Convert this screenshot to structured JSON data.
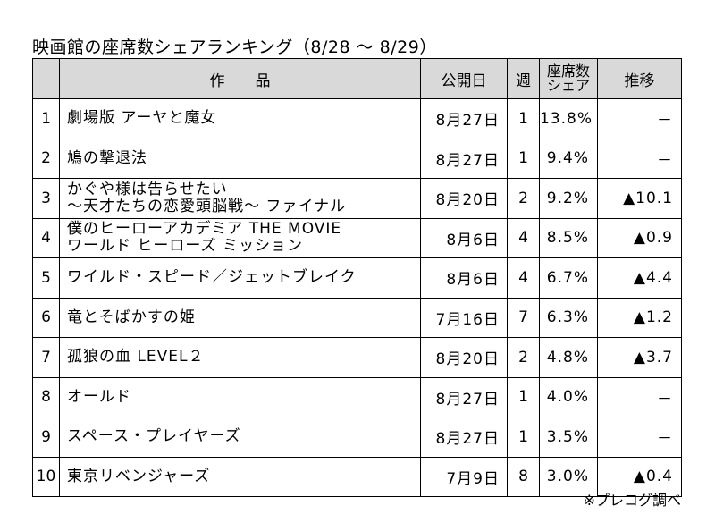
{
  "title": "映画館の座席数シェアランキング（8/28 ～ 8/29）",
  "headers": {
    "rank": "",
    "title": "作　　品",
    "release": "公開日",
    "week": "週",
    "share_line1": "座席数",
    "share_line2": "シェア",
    "trend": "推移"
  },
  "rows": [
    {
      "rank": "1",
      "title_line1": "劇場版 アーヤと魔女",
      "title_line2": "",
      "release": "8月27日",
      "week": "1",
      "share": "13.8%",
      "trend": "－"
    },
    {
      "rank": "2",
      "title_line1": "鳩の撃退法",
      "title_line2": "",
      "release": "8月27日",
      "week": "1",
      "share": "9.4%",
      "trend": "－"
    },
    {
      "rank": "3",
      "title_line1": "かぐや様は告らせたい",
      "title_line2": "～天才たちの恋愛頭脳戦～ ファイナル",
      "release": "8月20日",
      "week": "2",
      "share": "9.2%",
      "trend": "▲10.1"
    },
    {
      "rank": "4",
      "title_line1": "僕のヒーローアカデミア THE MOVIE",
      "title_line2": "ワールド ヒーローズ ミッション",
      "release": "8月6日",
      "week": "4",
      "share": "8.5%",
      "trend": "▲0.9"
    },
    {
      "rank": "5",
      "title_line1": "ワイルド・スピード／ジェットブレイク",
      "title_line2": "",
      "release": "8月6日",
      "week": "4",
      "share": "6.7%",
      "trend": "▲4.4"
    },
    {
      "rank": "6",
      "title_line1": "竜とそばかすの姫",
      "title_line2": "",
      "release": "7月16日",
      "week": "7",
      "share": "6.3%",
      "trend": "▲1.2"
    },
    {
      "rank": "7",
      "title_line1": "孤狼の血 LEVEL２",
      "title_line2": "",
      "release": "8月20日",
      "week": "2",
      "share": "4.8%",
      "trend": "▲3.7"
    },
    {
      "rank": "8",
      "title_line1": "オールド",
      "title_line2": "",
      "release": "8月27日",
      "week": "1",
      "share": "4.0%",
      "trend": "－"
    },
    {
      "rank": "9",
      "title_line1": "スペース・プレイヤーズ",
      "title_line2": "",
      "release": "8月27日",
      "week": "1",
      "share": "3.5%",
      "trend": "－"
    },
    {
      "rank": "10",
      "title_line1": "東京リベンジャーズ",
      "title_line2": "",
      "release": "7月9日",
      "week": "8",
      "share": "3.0%",
      "trend": "▲0.4"
    }
  ],
  "footnote": "※プレコグ調べ"
}
